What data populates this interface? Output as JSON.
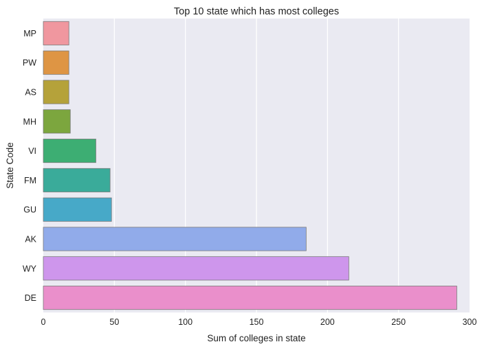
{
  "chart_data": {
    "type": "bar",
    "orientation": "horizontal",
    "title": "Top 10 state which has most colleges",
    "xlabel": "Sum of colleges in state",
    "ylabel": "State Code",
    "xlim": [
      0,
      300
    ],
    "xticks": [
      0,
      50,
      100,
      150,
      200,
      250,
      300
    ],
    "categories": [
      "MP",
      "PW",
      "AS",
      "MH",
      "VI",
      "FM",
      "GU",
      "AK",
      "WY",
      "DE"
    ],
    "values": [
      18,
      18,
      18,
      19,
      37,
      47,
      48,
      185,
      215,
      291
    ],
    "colors": [
      "#f0979f",
      "#de9544",
      "#b5a23a",
      "#7ca63e",
      "#3dae73",
      "#3aab9a",
      "#47a9c8",
      "#91abea",
      "#ce96ec",
      "#ea8fcb"
    ],
    "grid": true,
    "legend": "none"
  }
}
